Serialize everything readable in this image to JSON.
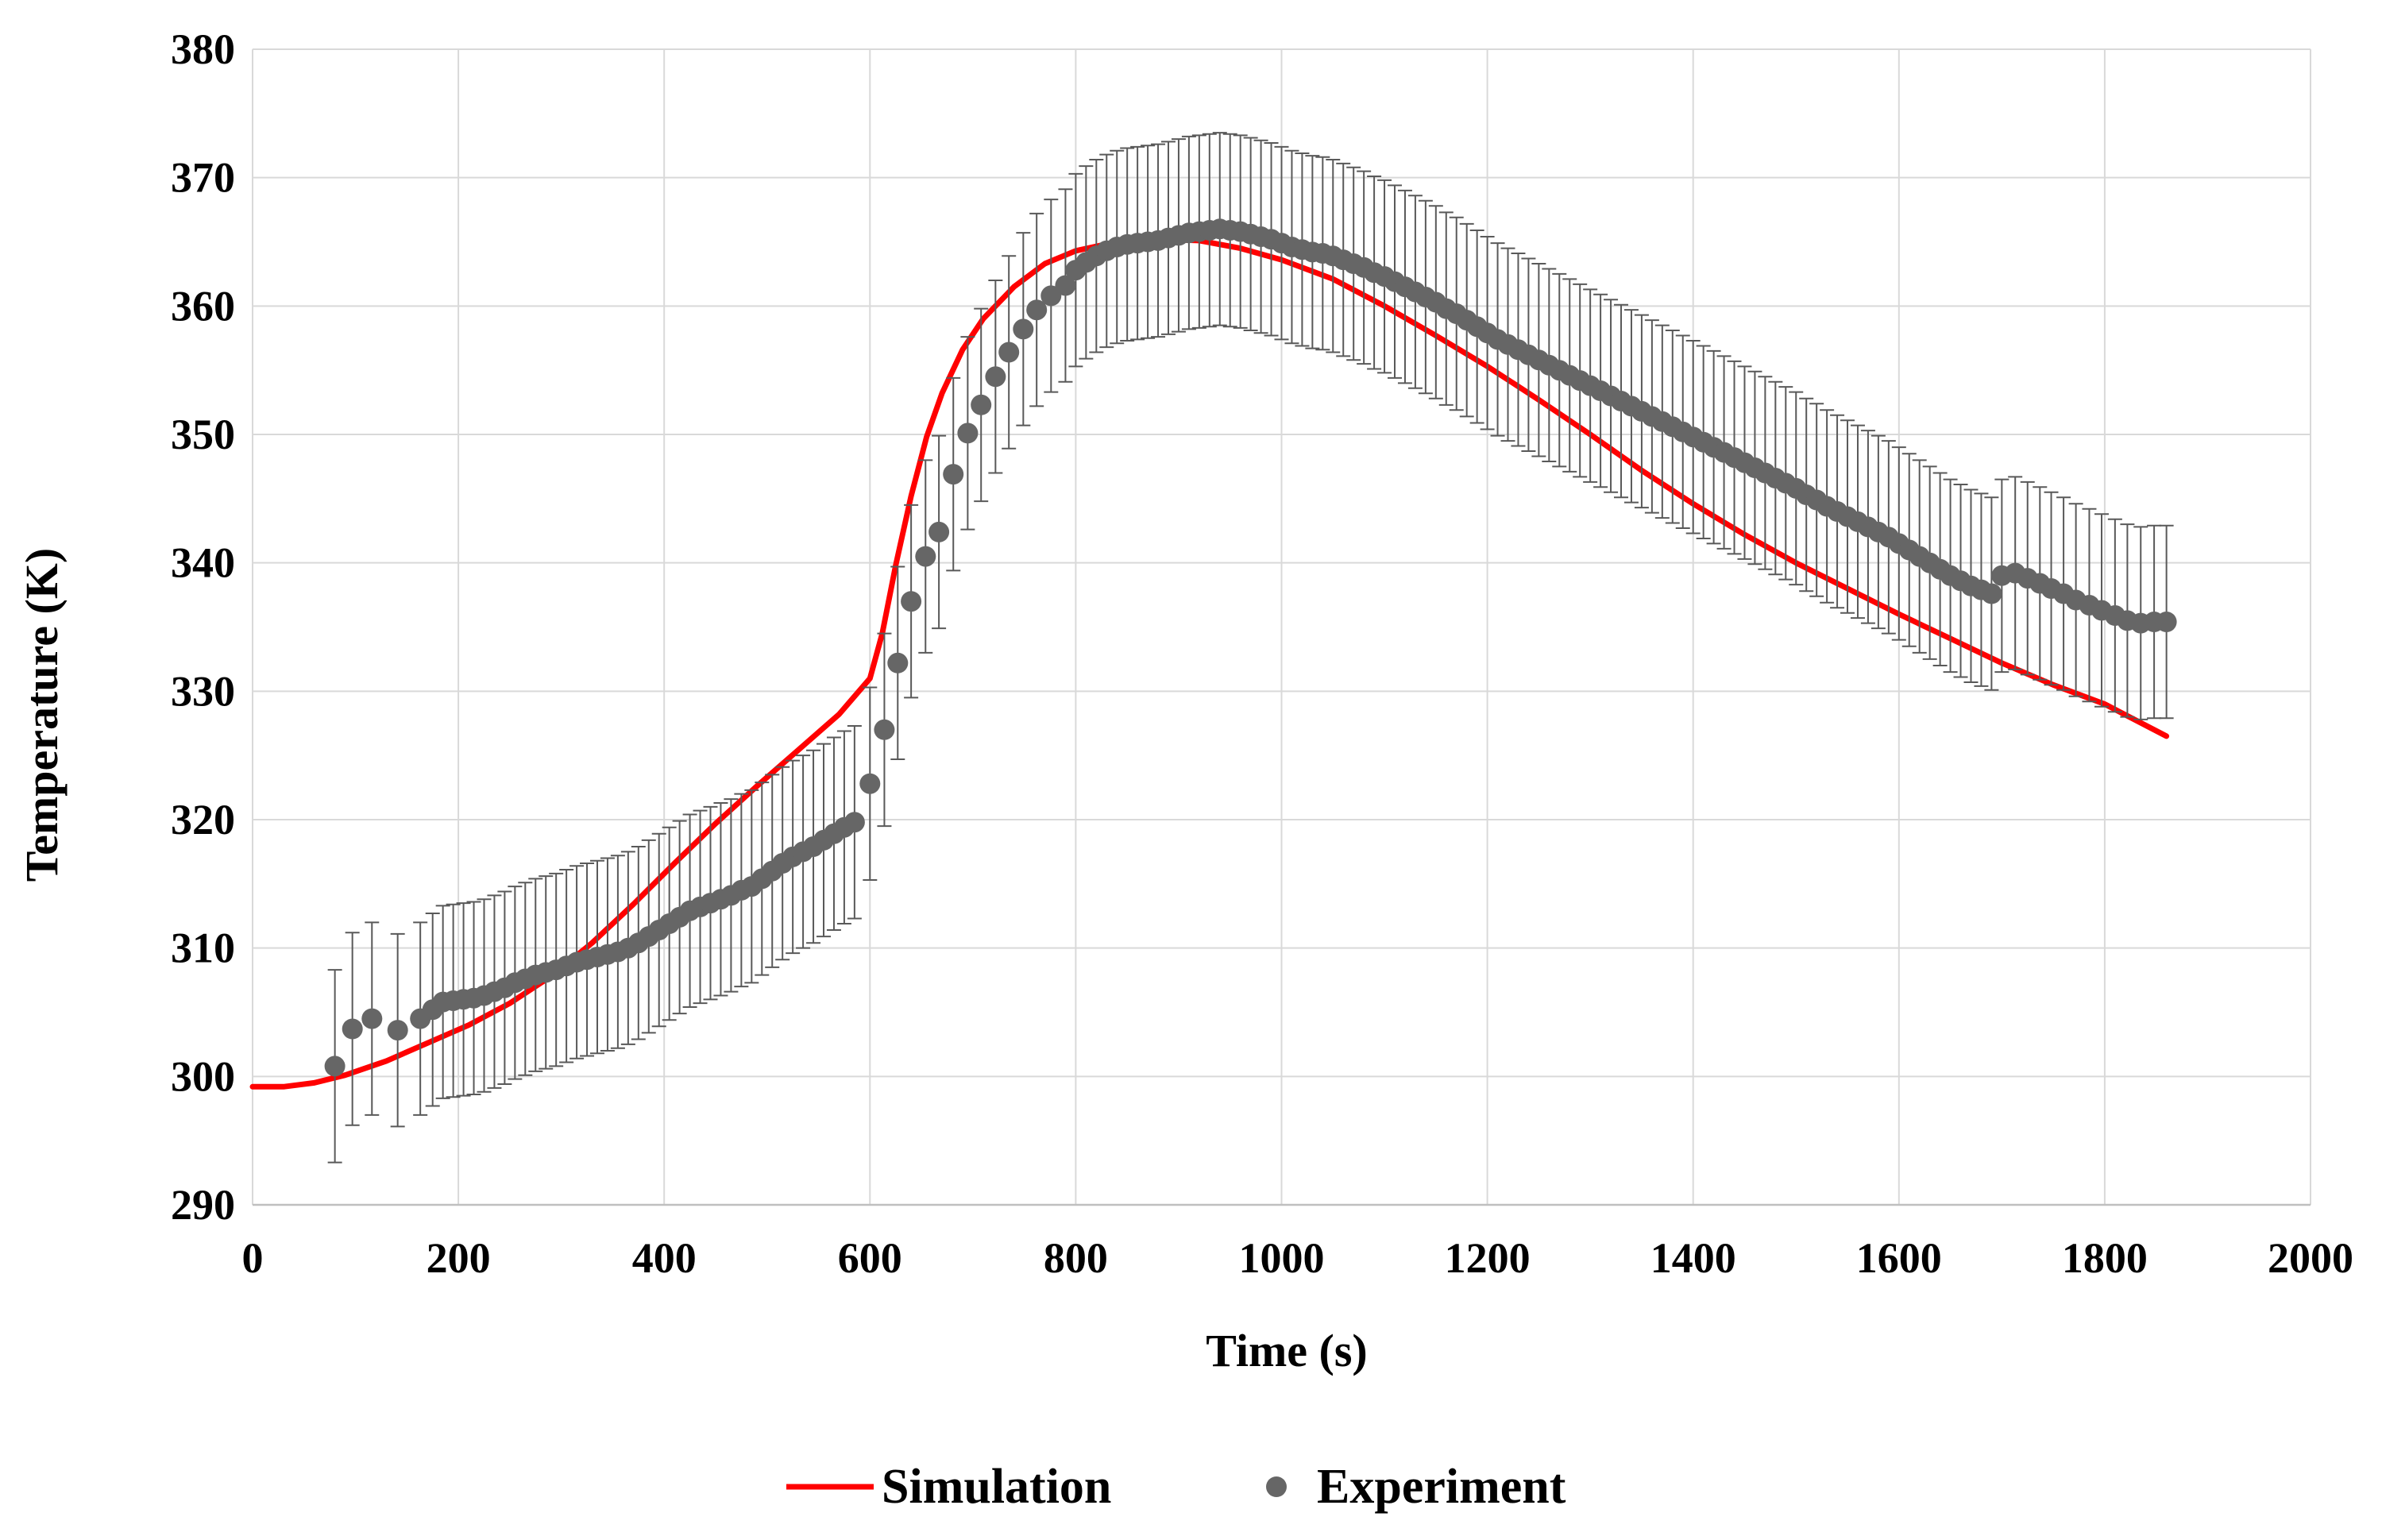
{
  "chart_data": {
    "type": "scatter",
    "xlabel": "Time (s)",
    "ylabel": "Temperature (K)",
    "xlim": [
      0,
      2000
    ],
    "ylim": [
      290,
      380
    ],
    "xticks": [
      "0",
      "200",
      "400",
      "600",
      "800",
      "1000",
      "1200",
      "1400",
      "1600",
      "1800",
      "2000"
    ],
    "yticks": [
      "290",
      "300",
      "310",
      "320",
      "330",
      "340",
      "350",
      "360",
      "370",
      "380"
    ],
    "grid": true,
    "legend_position": "bottom-center",
    "series": [
      {
        "name": "Simulation",
        "type": "line",
        "color": "#ff0000",
        "points": [
          [
            0,
            299.2
          ],
          [
            30,
            299.2
          ],
          [
            60,
            299.5
          ],
          [
            90,
            300.1
          ],
          [
            130,
            301.2
          ],
          [
            170,
            302.6
          ],
          [
            210,
            304.0
          ],
          [
            250,
            305.7
          ],
          [
            290,
            307.8
          ],
          [
            330,
            310.4
          ],
          [
            370,
            313.4
          ],
          [
            410,
            316.6
          ],
          [
            450,
            319.7
          ],
          [
            490,
            322.6
          ],
          [
            530,
            325.4
          ],
          [
            570,
            328.2
          ],
          [
            600,
            331.0
          ],
          [
            612,
            334.5
          ],
          [
            625,
            339.8
          ],
          [
            640,
            345.2
          ],
          [
            655,
            349.8
          ],
          [
            670,
            353.2
          ],
          [
            690,
            356.6
          ],
          [
            710,
            359.0
          ],
          [
            740,
            361.5
          ],
          [
            770,
            363.3
          ],
          [
            800,
            364.3
          ],
          [
            840,
            365.0
          ],
          [
            880,
            365.2
          ],
          [
            920,
            365.1
          ],
          [
            960,
            364.5
          ],
          [
            1000,
            363.6
          ],
          [
            1050,
            362.1
          ],
          [
            1100,
            360.0
          ],
          [
            1150,
            357.7
          ],
          [
            1200,
            355.3
          ],
          [
            1250,
            352.7
          ],
          [
            1300,
            350.0
          ],
          [
            1350,
            347.2
          ],
          [
            1400,
            344.6
          ],
          [
            1450,
            342.2
          ],
          [
            1500,
            340.0
          ],
          [
            1550,
            338.0
          ],
          [
            1600,
            336.0
          ],
          [
            1650,
            334.1
          ],
          [
            1700,
            332.2
          ],
          [
            1750,
            330.5
          ],
          [
            1800,
            329.0
          ],
          [
            1860,
            326.5
          ]
        ]
      },
      {
        "name": "Experiment",
        "type": "scatter",
        "color": "#666666",
        "error": 7.5,
        "error_color": "#595959",
        "points": [
          [
            80,
            300.8
          ],
          [
            97,
            303.7
          ],
          [
            116,
            304.5
          ],
          [
            141,
            303.6
          ],
          [
            163,
            304.5
          ],
          [
            175,
            305.2
          ],
          [
            185,
            305.8
          ],
          [
            195,
            305.9
          ],
          [
            205,
            306.0
          ],
          [
            215,
            306.1
          ],
          [
            225,
            306.3
          ],
          [
            235,
            306.6
          ],
          [
            245,
            306.9
          ],
          [
            255,
            307.3
          ],
          [
            265,
            307.6
          ],
          [
            275,
            307.9
          ],
          [
            285,
            308.1
          ],
          [
            295,
            308.3
          ],
          [
            305,
            308.6
          ],
          [
            315,
            308.9
          ],
          [
            325,
            309.1
          ],
          [
            335,
            309.3
          ],
          [
            345,
            309.5
          ],
          [
            355,
            309.7
          ],
          [
            365,
            310.0
          ],
          [
            375,
            310.4
          ],
          [
            385,
            310.9
          ],
          [
            395,
            311.4
          ],
          [
            405,
            311.9
          ],
          [
            415,
            312.4
          ],
          [
            425,
            312.9
          ],
          [
            435,
            313.2
          ],
          [
            445,
            313.5
          ],
          [
            455,
            313.8
          ],
          [
            465,
            314.1
          ],
          [
            475,
            314.5
          ],
          [
            485,
            314.8
          ],
          [
            495,
            315.4
          ],
          [
            505,
            316.0
          ],
          [
            515,
            316.6
          ],
          [
            525,
            317.1
          ],
          [
            535,
            317.5
          ],
          [
            545,
            317.9
          ],
          [
            555,
            318.4
          ],
          [
            565,
            318.9
          ],
          [
            575,
            319.4
          ],
          [
            585,
            319.8
          ],
          [
            600,
            322.8
          ],
          [
            614,
            327.0
          ],
          [
            627,
            332.2
          ],
          [
            640,
            337.0
          ],
          [
            654,
            340.5
          ],
          [
            667,
            342.4
          ],
          [
            681,
            346.9
          ],
          [
            695,
            350.1
          ],
          [
            708,
            352.3
          ],
          [
            722,
            354.5
          ],
          [
            735,
            356.4
          ],
          [
            749,
            358.2
          ],
          [
            762,
            359.7
          ],
          [
            776,
            360.8
          ],
          [
            790,
            361.6
          ],
          [
            800,
            362.8
          ],
          [
            810,
            363.4
          ],
          [
            820,
            363.9
          ],
          [
            830,
            364.3
          ],
          [
            840,
            364.6
          ],
          [
            850,
            364.8
          ],
          [
            860,
            364.9
          ],
          [
            870,
            365.0
          ],
          [
            880,
            365.1
          ],
          [
            890,
            365.3
          ],
          [
            900,
            365.5
          ],
          [
            910,
            365.7
          ],
          [
            920,
            365.8
          ],
          [
            930,
            365.9
          ],
          [
            940,
            366.0
          ],
          [
            950,
            365.9
          ],
          [
            960,
            365.8
          ],
          [
            970,
            365.6
          ],
          [
            980,
            365.4
          ],
          [
            990,
            365.2
          ],
          [
            1000,
            364.9
          ],
          [
            1010,
            364.6
          ],
          [
            1020,
            364.4
          ],
          [
            1030,
            364.2
          ],
          [
            1040,
            364.1
          ],
          [
            1050,
            363.9
          ],
          [
            1060,
            363.6
          ],
          [
            1070,
            363.3
          ],
          [
            1080,
            363.0
          ],
          [
            1090,
            362.6
          ],
          [
            1100,
            362.3
          ],
          [
            1110,
            361.9
          ],
          [
            1120,
            361.5
          ],
          [
            1130,
            361.1
          ],
          [
            1140,
            360.7
          ],
          [
            1150,
            360.3
          ],
          [
            1160,
            359.8
          ],
          [
            1170,
            359.4
          ],
          [
            1180,
            358.9
          ],
          [
            1190,
            358.4
          ],
          [
            1200,
            357.9
          ],
          [
            1210,
            357.4
          ],
          [
            1220,
            357.0
          ],
          [
            1230,
            356.6
          ],
          [
            1240,
            356.2
          ],
          [
            1250,
            355.8
          ],
          [
            1260,
            355.4
          ],
          [
            1270,
            355.0
          ],
          [
            1280,
            354.6
          ],
          [
            1290,
            354.2
          ],
          [
            1300,
            353.8
          ],
          [
            1310,
            353.4
          ],
          [
            1320,
            353.0
          ],
          [
            1330,
            352.6
          ],
          [
            1340,
            352.2
          ],
          [
            1350,
            351.8
          ],
          [
            1360,
            351.4
          ],
          [
            1370,
            351.0
          ],
          [
            1380,
            350.6
          ],
          [
            1390,
            350.2
          ],
          [
            1400,
            349.8
          ],
          [
            1410,
            349.4
          ],
          [
            1420,
            349.0
          ],
          [
            1430,
            348.6
          ],
          [
            1440,
            348.2
          ],
          [
            1450,
            347.8
          ],
          [
            1460,
            347.4
          ],
          [
            1470,
            347.0
          ],
          [
            1480,
            346.6
          ],
          [
            1490,
            346.2
          ],
          [
            1500,
            345.8
          ],
          [
            1510,
            345.3
          ],
          [
            1520,
            344.9
          ],
          [
            1530,
            344.4
          ],
          [
            1540,
            344.0
          ],
          [
            1550,
            343.6
          ],
          [
            1560,
            343.2
          ],
          [
            1570,
            342.8
          ],
          [
            1580,
            342.4
          ],
          [
            1590,
            342.0
          ],
          [
            1600,
            341.5
          ],
          [
            1610,
            341.0
          ],
          [
            1620,
            340.5
          ],
          [
            1630,
            340.0
          ],
          [
            1640,
            339.5
          ],
          [
            1650,
            339.0
          ],
          [
            1660,
            338.6
          ],
          [
            1670,
            338.2
          ],
          [
            1680,
            337.9
          ],
          [
            1690,
            337.6
          ],
          [
            1700,
            339.0
          ],
          [
            1713,
            339.2
          ],
          [
            1725,
            338.8
          ],
          [
            1737,
            338.4
          ],
          [
            1748,
            338.0
          ],
          [
            1760,
            337.6
          ],
          [
            1772,
            337.1
          ],
          [
            1785,
            336.7
          ],
          [
            1797,
            336.3
          ],
          [
            1810,
            335.9
          ],
          [
            1822,
            335.5
          ],
          [
            1835,
            335.3
          ],
          [
            1848,
            335.4
          ],
          [
            1860,
            335.4
          ]
        ]
      }
    ]
  }
}
